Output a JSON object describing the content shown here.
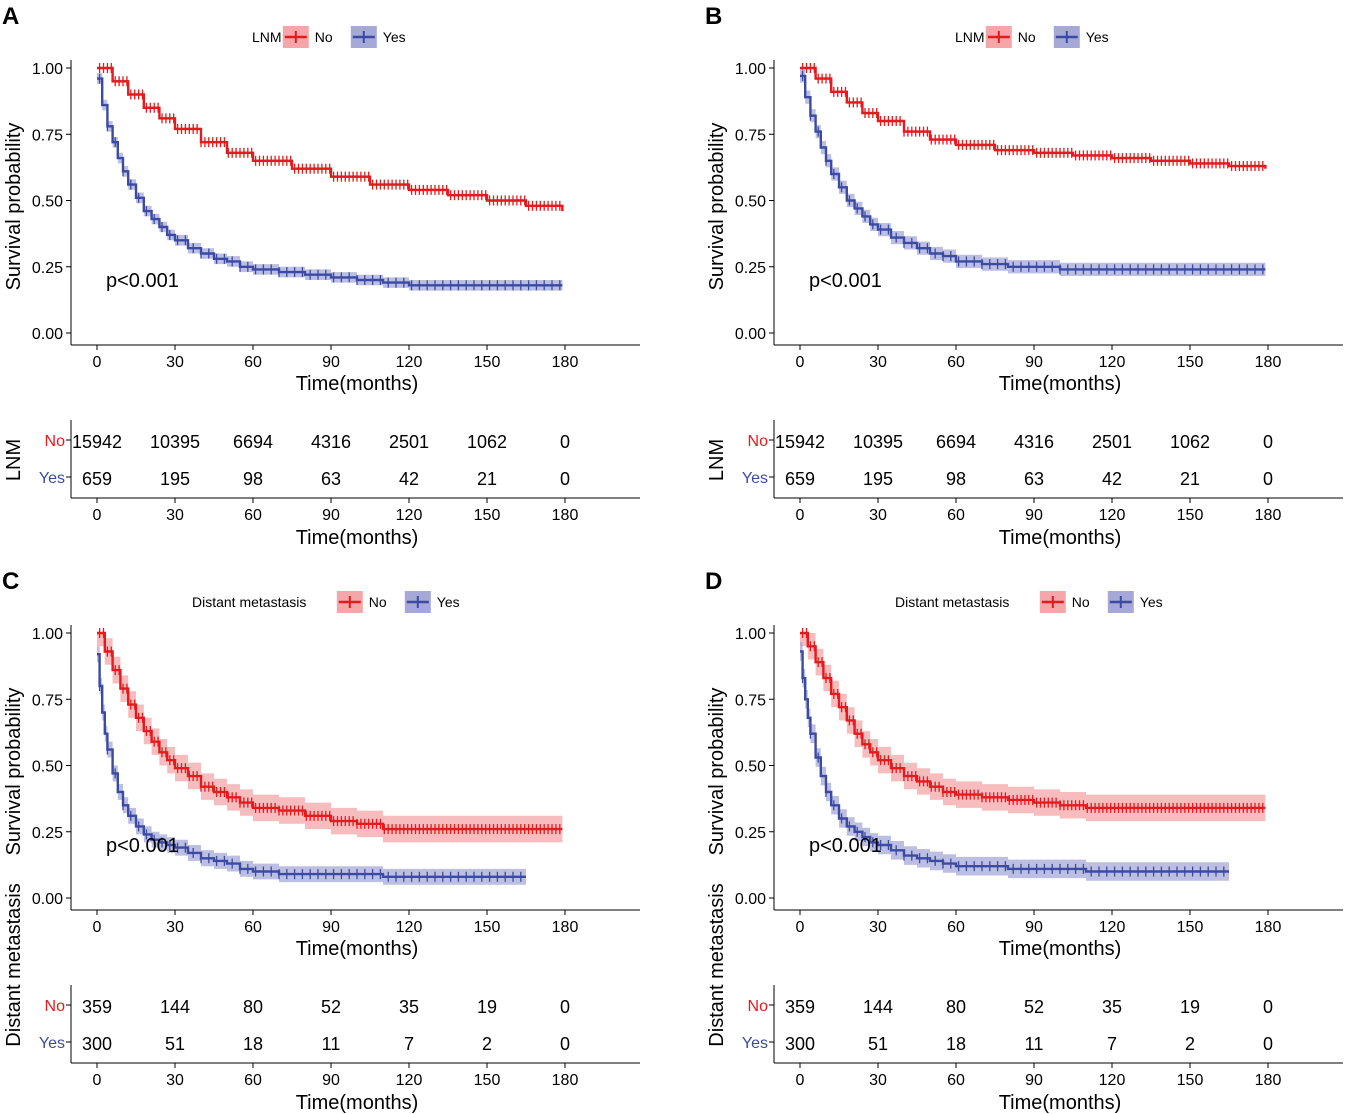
{
  "colors": {
    "no": "#E41A1C",
    "yes": "#3B4BA3",
    "no_band": "#F4A6A8",
    "yes_band": "#A6A8D8",
    "axis": "#000000"
  },
  "p_value_label": "p<0.001",
  "chart_data": [
    {
      "panel": "A",
      "type": "line",
      "legend_title": "LNM",
      "series_names": [
        "No",
        "Yes"
      ],
      "xlabel": "Time(months)",
      "ylabel": "Survival probability",
      "xticks": [
        "0",
        "30",
        "60",
        "90",
        "120",
        "150",
        "180"
      ],
      "yticks": [
        "0.00",
        "0.25",
        "0.50",
        "0.75",
        "1.00"
      ],
      "xlim": [
        0,
        210
      ],
      "ylim": [
        0,
        1
      ],
      "curves": [
        {
          "name": "No",
          "x": [
            0,
            6,
            12,
            18,
            24,
            30,
            40,
            50,
            60,
            75,
            90,
            105,
            120,
            135,
            150,
            165,
            179
          ],
          "y": [
            1.0,
            0.95,
            0.9,
            0.85,
            0.81,
            0.77,
            0.72,
            0.68,
            0.65,
            0.62,
            0.59,
            0.56,
            0.54,
            0.52,
            0.5,
            0.48,
            0.46
          ],
          "band": 0.005
        },
        {
          "name": "Yes",
          "x": [
            0,
            2,
            4,
            6,
            8,
            10,
            12,
            15,
            18,
            21,
            24,
            27,
            30,
            35,
            40,
            45,
            50,
            55,
            60,
            70,
            80,
            90,
            100,
            110,
            120,
            135,
            150,
            165,
            179
          ],
          "y": [
            0.96,
            0.86,
            0.78,
            0.72,
            0.66,
            0.61,
            0.56,
            0.51,
            0.46,
            0.43,
            0.4,
            0.37,
            0.35,
            0.32,
            0.3,
            0.28,
            0.27,
            0.25,
            0.24,
            0.23,
            0.22,
            0.21,
            0.2,
            0.19,
            0.18,
            0.18,
            0.18,
            0.18,
            0.18
          ],
          "band": 0.02
        }
      ],
      "risk_table": {
        "ylabel": "LNM",
        "xlabel": "Time(months)",
        "rows": [
          {
            "label": "No",
            "counts": [
              "15942",
              "10395",
              "6694",
              "4316",
              "2501",
              "1062",
              "0"
            ]
          },
          {
            "label": "Yes",
            "counts": [
              "659",
              "195",
              "98",
              "63",
              "42",
              "21",
              "0"
            ]
          }
        ]
      }
    },
    {
      "panel": "B",
      "type": "line",
      "legend_title": "LNM",
      "series_names": [
        "No",
        "Yes"
      ],
      "xlabel": "Time(months)",
      "ylabel": "Survival probability",
      "xticks": [
        "0",
        "30",
        "60",
        "90",
        "120",
        "150",
        "180"
      ],
      "yticks": [
        "0.00",
        "0.25",
        "0.50",
        "0.75",
        "1.00"
      ],
      "xlim": [
        0,
        210
      ],
      "ylim": [
        0,
        1
      ],
      "curves": [
        {
          "name": "No",
          "x": [
            0,
            6,
            12,
            18,
            24,
            30,
            40,
            50,
            60,
            75,
            90,
            105,
            120,
            135,
            150,
            165,
            179
          ],
          "y": [
            1.0,
            0.96,
            0.91,
            0.87,
            0.83,
            0.8,
            0.76,
            0.73,
            0.71,
            0.69,
            0.68,
            0.67,
            0.66,
            0.65,
            0.64,
            0.63,
            0.62
          ],
          "band": 0.005
        },
        {
          "name": "Yes",
          "x": [
            0,
            2,
            4,
            6,
            8,
            10,
            12,
            15,
            18,
            21,
            24,
            27,
            30,
            35,
            40,
            45,
            50,
            55,
            60,
            70,
            80,
            90,
            100,
            110,
            120,
            135,
            150,
            165,
            179
          ],
          "y": [
            0.97,
            0.89,
            0.82,
            0.76,
            0.7,
            0.65,
            0.6,
            0.55,
            0.5,
            0.47,
            0.44,
            0.41,
            0.39,
            0.36,
            0.34,
            0.32,
            0.3,
            0.29,
            0.27,
            0.26,
            0.25,
            0.25,
            0.24,
            0.24,
            0.24,
            0.24,
            0.24,
            0.24,
            0.24
          ],
          "band": 0.025
        }
      ],
      "risk_table": {
        "ylabel": "LNM",
        "xlabel": "Time(months)",
        "rows": [
          {
            "label": "No",
            "counts": [
              "15942",
              "10395",
              "6694",
              "4316",
              "2501",
              "1062",
              "0"
            ]
          },
          {
            "label": "Yes",
            "counts": [
              "659",
              "195",
              "98",
              "63",
              "42",
              "21",
              "0"
            ]
          }
        ]
      }
    },
    {
      "panel": "C",
      "type": "line",
      "legend_title": "Distant metastasis",
      "series_names": [
        "No",
        "Yes"
      ],
      "xlabel": "Time(months)",
      "ylabel": "Survival probability",
      "xticks": [
        "0",
        "30",
        "60",
        "90",
        "120",
        "150",
        "180"
      ],
      "yticks": [
        "0.00",
        "0.25",
        "0.50",
        "0.75",
        "1.00"
      ],
      "xlim": [
        0,
        210
      ],
      "ylim": [
        0,
        1
      ],
      "curves": [
        {
          "name": "No",
          "x": [
            0,
            3,
            6,
            9,
            12,
            15,
            18,
            21,
            24,
            27,
            30,
            35,
            40,
            45,
            50,
            55,
            60,
            70,
            80,
            90,
            100,
            110,
            120,
            135,
            150,
            165,
            179
          ],
          "y": [
            1.0,
            0.93,
            0.86,
            0.79,
            0.73,
            0.68,
            0.63,
            0.59,
            0.55,
            0.52,
            0.49,
            0.46,
            0.42,
            0.4,
            0.38,
            0.36,
            0.34,
            0.33,
            0.31,
            0.29,
            0.28,
            0.26,
            0.26,
            0.26,
            0.26,
            0.26,
            0.26
          ],
          "band": 0.05
        },
        {
          "name": "Yes",
          "x": [
            0,
            1,
            2,
            3,
            4,
            6,
            8,
            10,
            12,
            15,
            18,
            21,
            24,
            27,
            30,
            35,
            40,
            45,
            50,
            55,
            60,
            70,
            80,
            90,
            100,
            110,
            120,
            135,
            150,
            165
          ],
          "y": [
            0.92,
            0.8,
            0.7,
            0.62,
            0.56,
            0.47,
            0.4,
            0.35,
            0.31,
            0.27,
            0.24,
            0.22,
            0.21,
            0.2,
            0.19,
            0.17,
            0.15,
            0.14,
            0.13,
            0.11,
            0.1,
            0.09,
            0.09,
            0.09,
            0.09,
            0.08,
            0.08,
            0.08,
            0.08,
            0.08
          ],
          "band": 0.03
        }
      ],
      "risk_table": {
        "ylabel": "Distant metastasis",
        "xlabel": "Time(months)",
        "rows": [
          {
            "label": "No",
            "counts": [
              "359",
              "144",
              "80",
              "52",
              "35",
              "19",
              "0"
            ]
          },
          {
            "label": "Yes",
            "counts": [
              "300",
              "51",
              "18",
              "11",
              "7",
              "2",
              "0"
            ]
          }
        ]
      }
    },
    {
      "panel": "D",
      "type": "line",
      "legend_title": "Distant metastasis",
      "series_names": [
        "No",
        "Yes"
      ],
      "xlabel": "Time(months)",
      "ylabel": "Survival probability",
      "xticks": [
        "0",
        "30",
        "60",
        "90",
        "120",
        "150",
        "180"
      ],
      "yticks": [
        "0.00",
        "0.25",
        "0.50",
        "0.75",
        "1.00"
      ],
      "xlim": [
        0,
        210
      ],
      "ylim": [
        0,
        1
      ],
      "curves": [
        {
          "name": "No",
          "x": [
            0,
            3,
            6,
            9,
            12,
            15,
            18,
            21,
            24,
            27,
            30,
            35,
            40,
            45,
            50,
            55,
            60,
            70,
            80,
            90,
            100,
            110,
            120,
            135,
            150,
            165,
            179
          ],
          "y": [
            1.0,
            0.95,
            0.89,
            0.83,
            0.77,
            0.72,
            0.67,
            0.62,
            0.58,
            0.55,
            0.52,
            0.49,
            0.46,
            0.44,
            0.42,
            0.4,
            0.39,
            0.38,
            0.37,
            0.36,
            0.35,
            0.34,
            0.34,
            0.34,
            0.34,
            0.34,
            0.34
          ],
          "band": 0.05
        },
        {
          "name": "Yes",
          "x": [
            0,
            1,
            2,
            3,
            4,
            6,
            8,
            10,
            12,
            15,
            18,
            21,
            24,
            27,
            30,
            35,
            40,
            45,
            50,
            55,
            60,
            70,
            80,
            90,
            100,
            110,
            120,
            135,
            150,
            165
          ],
          "y": [
            0.93,
            0.83,
            0.75,
            0.68,
            0.62,
            0.53,
            0.46,
            0.4,
            0.35,
            0.3,
            0.27,
            0.25,
            0.23,
            0.21,
            0.2,
            0.18,
            0.16,
            0.15,
            0.14,
            0.13,
            0.12,
            0.12,
            0.11,
            0.11,
            0.11,
            0.1,
            0.1,
            0.1,
            0.1,
            0.1
          ],
          "band": 0.035
        }
      ],
      "risk_table": {
        "ylabel": "Distant metastasis",
        "xlabel": "Time(months)",
        "rows": [
          {
            "label": "No",
            "counts": [
              "359",
              "144",
              "80",
              "52",
              "35",
              "19",
              "0"
            ]
          },
          {
            "label": "Yes",
            "counts": [
              "300",
              "51",
              "18",
              "11",
              "7",
              "2",
              "0"
            ]
          }
        ]
      }
    }
  ]
}
